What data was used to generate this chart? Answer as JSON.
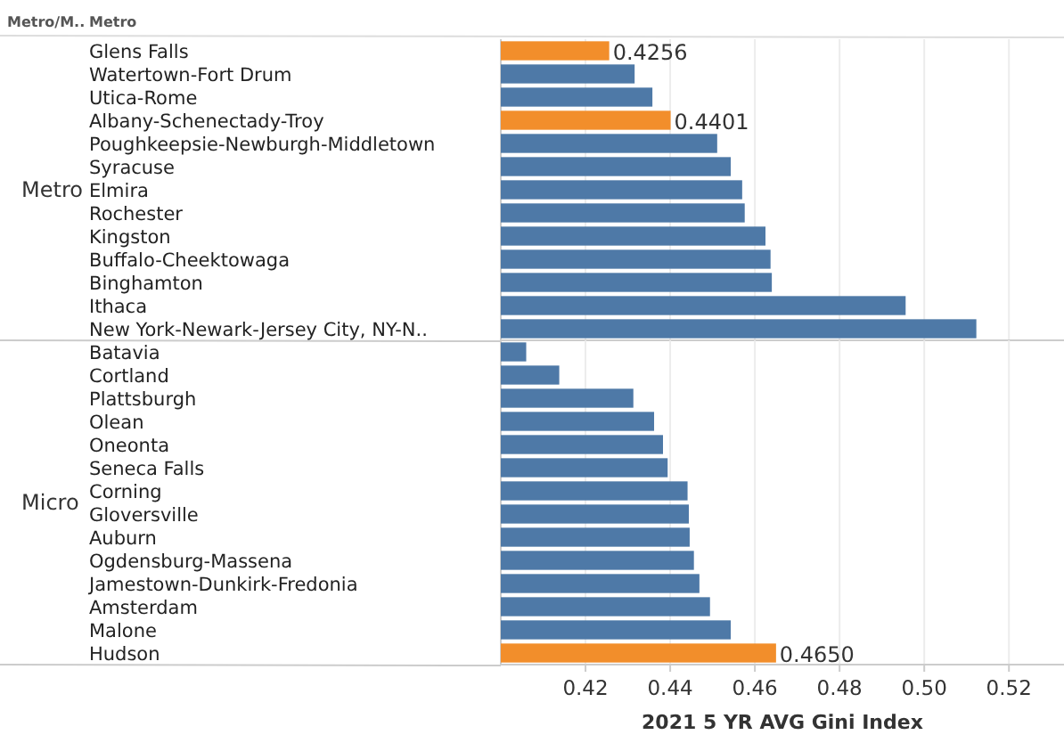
{
  "chart_data": [
    {
      "type": "bar",
      "orientation": "horizontal",
      "ylabel": "Metro",
      "annotations": [
        "Metro/M..",
        "Metro"
      ],
      "categories": [
        "Glens Falls",
        "Watertown-Fort Drum",
        "Utica-Rome",
        "Albany-Schenectady-Troy",
        "Poughkeepsie-Newburgh-Middletown",
        "Syracuse",
        "Elmira",
        "Rochester",
        "Kingston",
        "Buffalo-Cheektowaga",
        "Binghamton",
        "Ithaca",
        "New York-Newark-Jersey City, NY-N.."
      ],
      "values": [
        0.4256,
        0.4316,
        0.4358,
        0.4401,
        0.4511,
        0.4543,
        0.457,
        0.4576,
        0.4625,
        0.4637,
        0.464,
        0.4956,
        0.5123
      ],
      "colors": [
        "#f28e2b",
        "#4e79a7",
        "#4e79a7",
        "#f28e2b",
        "#4e79a7",
        "#4e79a7",
        "#4e79a7",
        "#4e79a7",
        "#4e79a7",
        "#4e79a7",
        "#4e79a7",
        "#4e79a7",
        "#4e79a7"
      ],
      "value_labels": [
        "0.4256",
        null,
        null,
        "0.4401",
        null,
        null,
        null,
        null,
        null,
        null,
        null,
        null,
        null
      ],
      "xlim": [
        0.4,
        0.533
      ],
      "xticks": [
        0.42,
        0.44,
        0.46,
        0.48,
        0.5,
        0.52
      ],
      "grid": "x",
      "tick_labels": "y"
    },
    {
      "type": "bar",
      "orientation": "horizontal",
      "ylabel": "Micro",
      "xlabel": "2021 5 YR AVG Gini Index",
      "categories": [
        "Batavia",
        "Cortland",
        "Plattsburgh",
        "Olean",
        "Oneonta",
        "Seneca Falls",
        "Corning",
        "Gloversville",
        "Auburn",
        "Ogdensburg-Massena",
        "Jamestown-Dunkirk-Fredonia",
        "Amsterdam",
        "Malone",
        "Hudson"
      ],
      "values": [
        0.406,
        0.4138,
        0.4313,
        0.4362,
        0.4383,
        0.4394,
        0.4441,
        0.4444,
        0.4446,
        0.4456,
        0.4469,
        0.4494,
        0.4543,
        0.465
      ],
      "colors": [
        "#4e79a7",
        "#4e79a7",
        "#4e79a7",
        "#4e79a7",
        "#4e79a7",
        "#4e79a7",
        "#4e79a7",
        "#4e79a7",
        "#4e79a7",
        "#4e79a7",
        "#4e79a7",
        "#4e79a7",
        "#4e79a7",
        "#f28e2b"
      ],
      "value_labels": [
        null,
        null,
        null,
        null,
        null,
        null,
        null,
        null,
        null,
        null,
        null,
        null,
        null,
        "0.4650"
      ],
      "xlim": [
        0.4,
        0.533
      ],
      "xticks": [
        0.42,
        0.44,
        0.46,
        0.48,
        {
          "value": 0.5,
          "label": "0.50"
        },
        0.52
      ],
      "grid": "x"
    }
  ]
}
